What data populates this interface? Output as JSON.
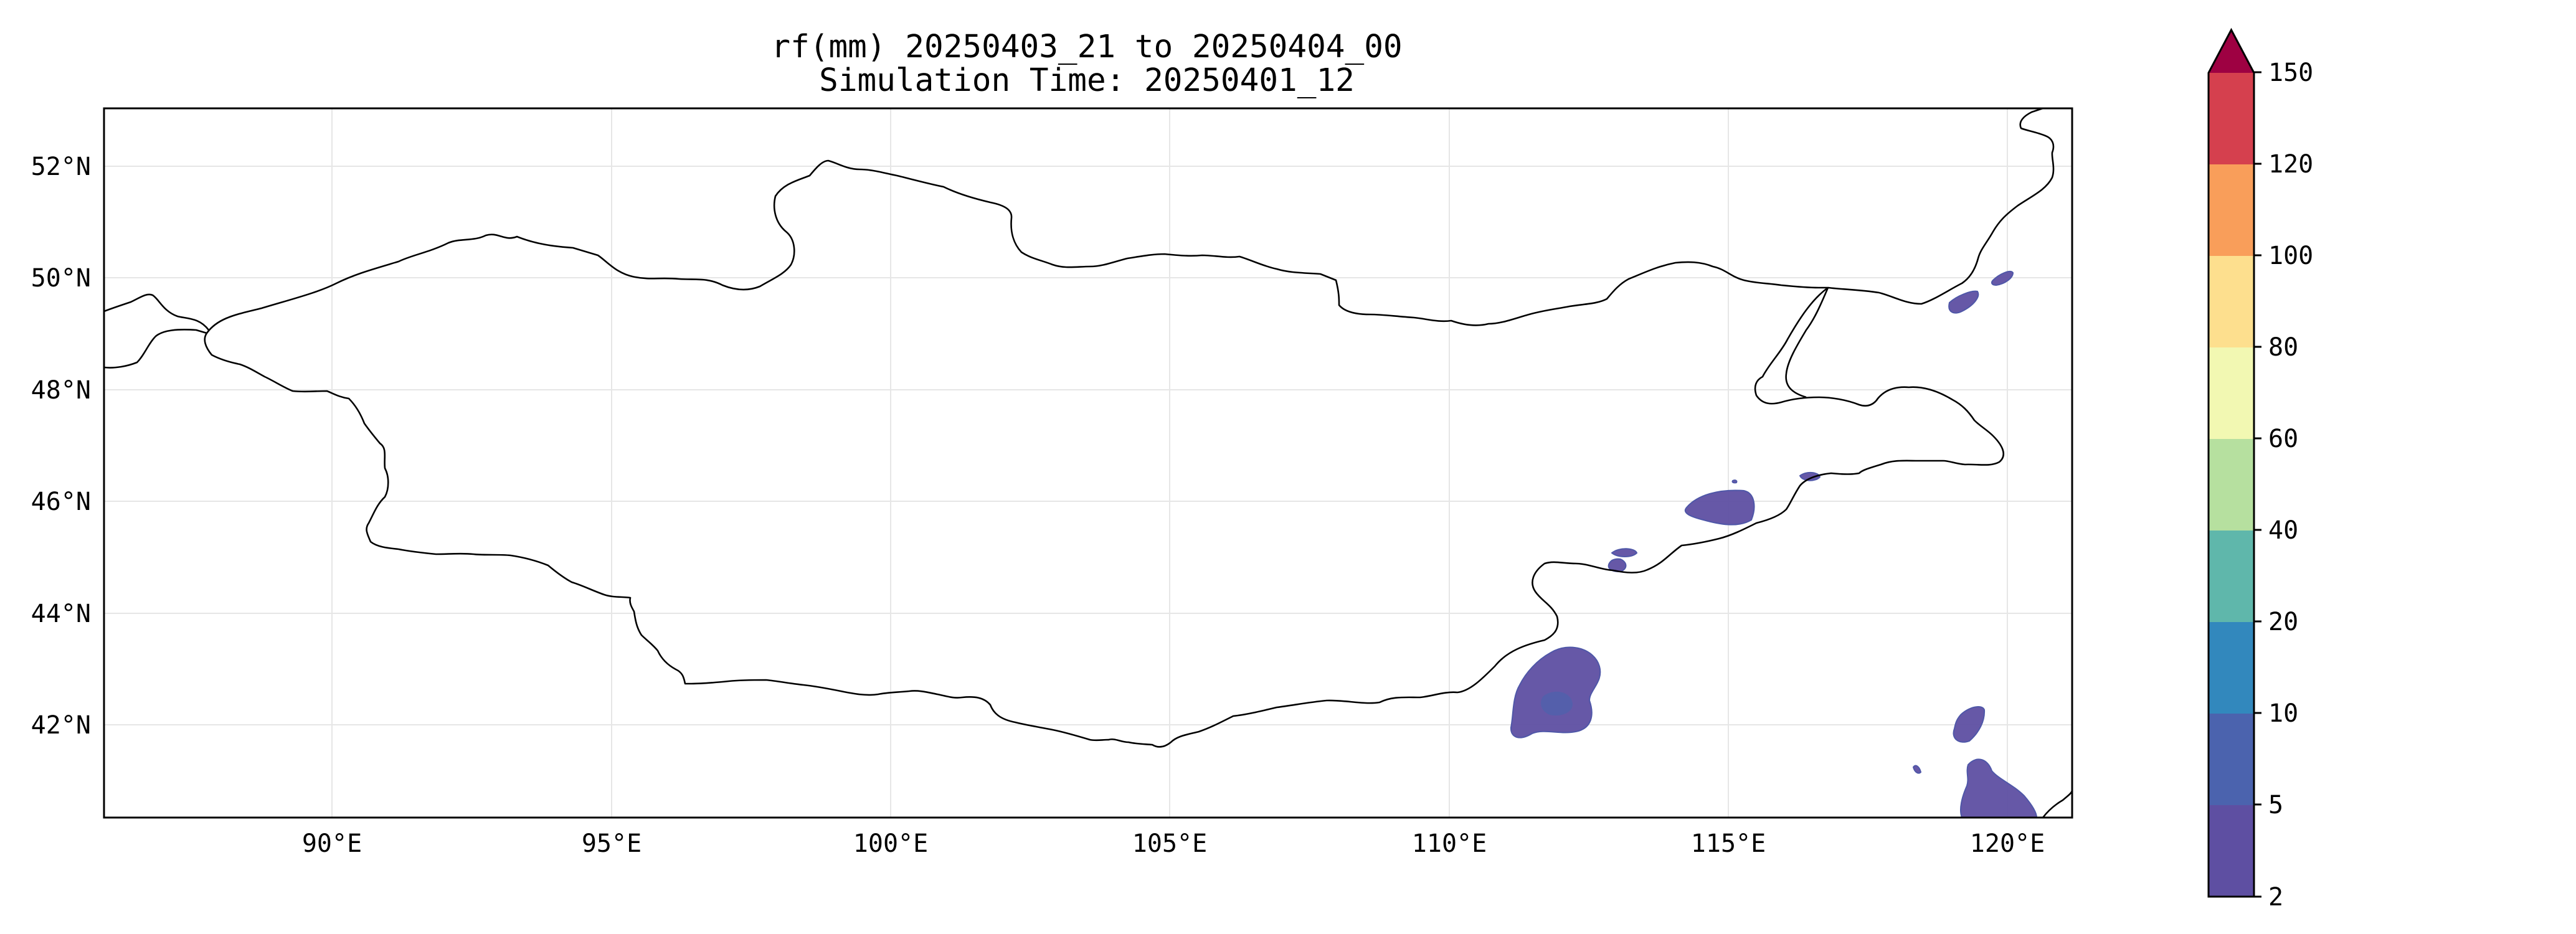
{
  "title": {
    "line1": "rf(mm) 20250403_21 to 20250404_00",
    "line2": "Simulation Time: 20250401_12"
  },
  "map": {
    "lon_ticks": [
      "90°E",
      "95°E",
      "100°E",
      "105°E",
      "110°E",
      "115°E",
      "120°E"
    ],
    "lat_ticks": [
      "52°N",
      "50°N",
      "48°N",
      "46°N",
      "44°N",
      "42°N"
    ],
    "extent": {
      "lon": [
        86,
        121.2
      ],
      "lat": [
        40.3,
        53
      ]
    },
    "gridlines": true
  },
  "colorbar": {
    "levels": [
      "2",
      "5",
      "10",
      "20",
      "40",
      "60",
      "80",
      "100",
      "120",
      "150"
    ],
    "colors": [
      "#5e4fa2",
      "#4b63ae",
      "#3288bd",
      "#5fb7ab",
      "#b6e09f",
      "#f2f8b2",
      "#fddf8e",
      "#f99e5a",
      "#d5404e",
      "#9e0142"
    ],
    "extend": "max"
  }
}
